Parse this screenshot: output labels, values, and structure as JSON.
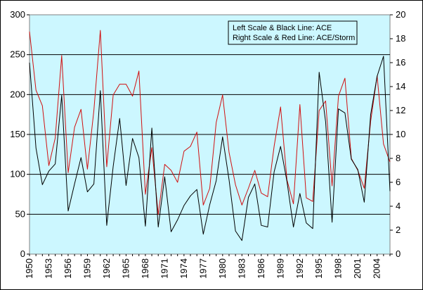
{
  "chart_data": {
    "type": "line",
    "title": "",
    "xlabel": "",
    "ylabel_left": "",
    "ylabel_right": "",
    "x": [
      1950,
      1951,
      1952,
      1953,
      1954,
      1955,
      1956,
      1957,
      1958,
      1959,
      1960,
      1961,
      1962,
      1963,
      1964,
      1965,
      1966,
      1967,
      1968,
      1969,
      1970,
      1971,
      1972,
      1973,
      1974,
      1975,
      1976,
      1977,
      1978,
      1979,
      1980,
      1981,
      1982,
      1983,
      1984,
      1985,
      1986,
      1987,
      1988,
      1989,
      1990,
      1991,
      1992,
      1993,
      1994,
      1995,
      1996,
      1997,
      1998,
      1999,
      2000,
      2001,
      2002,
      2003,
      2004,
      2005,
      2006
    ],
    "xticks": [
      "1950",
      "1953",
      "1956",
      "1959",
      "1962",
      "1965",
      "1968",
      "1971",
      "1974",
      "1977",
      "1980",
      "1983",
      "1986",
      "1989",
      "1992",
      "1995",
      "1998",
      "2001",
      "2004"
    ],
    "ylim_left": [
      0,
      300
    ],
    "yticks_left": [
      "0",
      "50",
      "100",
      "150",
      "200",
      "250",
      "300"
    ],
    "ylim_right": [
      0,
      20
    ],
    "yticks_right": [
      "0",
      "2",
      "4",
      "6",
      "8",
      "10",
      "12",
      "14",
      "16",
      "18",
      "20"
    ],
    "grid": true,
    "legend_position": "top-right",
    "legend": [
      "Left Scale & Black Line: ACE",
      "Right Scale & Red Line: ACE/Storm"
    ],
    "series": [
      {
        "axis": "left",
        "color": "#000000",
        "values": [
          240,
          133,
          87,
          104,
          113,
          199,
          54,
          88,
          121,
          78,
          88,
          205,
          36,
          110,
          170,
          86,
          145,
          121,
          35,
          158,
          34,
          97,
          28,
          43,
          61,
          73,
          81,
          25,
          62,
          92,
          147,
          93,
          29,
          17,
          71,
          88,
          36,
          34,
          103,
          135,
          91,
          34,
          76,
          39,
          32,
          228,
          166,
          40,
          182,
          177,
          119,
          106,
          65,
          175,
          223,
          248,
          79
        ]
      },
      {
        "axis": "right",
        "color": "#d01010",
        "values": [
          18.6,
          13.7,
          12.4,
          7.4,
          9.7,
          16.6,
          6.8,
          10.6,
          12.1,
          7.1,
          12.0,
          18.7,
          7.3,
          13.3,
          14.2,
          14.2,
          13.2,
          15.3,
          5.0,
          8.9,
          3.3,
          7.5,
          7.0,
          6.0,
          8.6,
          9.0,
          10.2,
          4.1,
          5.5,
          11.0,
          13.3,
          8.5,
          5.8,
          4.1,
          5.5,
          7.0,
          5.1,
          4.8,
          9.0,
          12.3,
          6.2,
          4.2,
          12.5,
          4.7,
          4.4,
          12.0,
          12.8,
          5.7,
          13.2,
          14.7,
          8.0,
          7.0,
          5.5,
          11.1,
          14.9,
          9.2,
          7.7
        ]
      }
    ]
  }
}
